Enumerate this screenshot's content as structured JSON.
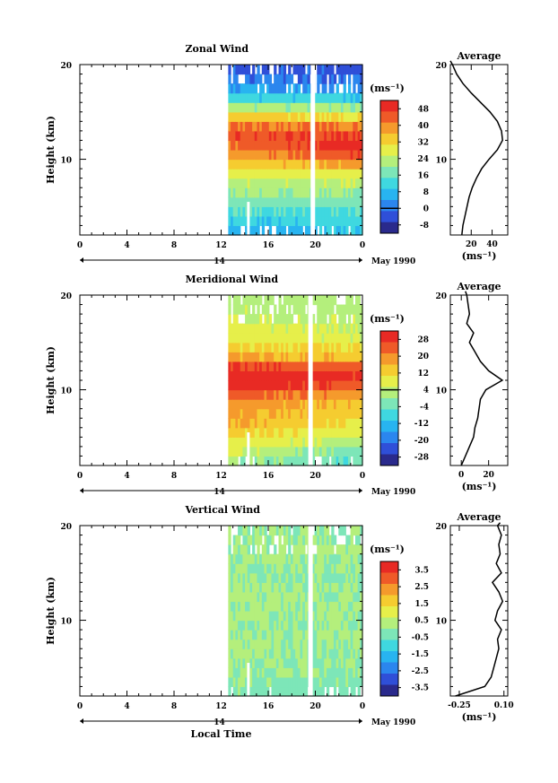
{
  "chart_data": [
    {
      "type": "heatmap",
      "title": "Zonal Wind",
      "ylabel": "Height (km)",
      "ylim": [
        2,
        20
      ],
      "y_ticks": [
        "20",
        "10"
      ],
      "x_ticks": [
        "0",
        "4",
        "8",
        "12",
        "16",
        "20",
        "0"
      ],
      "xlim": [
        0,
        24
      ],
      "data_start_hour": 12.6,
      "gap_hours": [
        14.2,
        19.6
      ],
      "date_day_label": "14",
      "date_label": "May 1990",
      "colorbar": {
        "unit": "(ms⁻¹)",
        "labels": [
          "48",
          "40",
          "32",
          "24",
          "16",
          "8",
          "0",
          "-8"
        ],
        "zero_line_index": 6
      },
      "field": {
        "levels_km": [
          2,
          3,
          4,
          5,
          6,
          7,
          8,
          9,
          10,
          11,
          12,
          13,
          14,
          15,
          16,
          17,
          18,
          19,
          20
        ],
        "early_ms": [
          6,
          10,
          14,
          17,
          21,
          24,
          27,
          32,
          38,
          42,
          45,
          42,
          33,
          22,
          11,
          4,
          0,
          -2,
          -4
        ],
        "late_ms": [
          10,
          12,
          14,
          17,
          20,
          24,
          29,
          38,
          46,
          50,
          47,
          40,
          30,
          20,
          10,
          3,
          -1,
          -3,
          -5
        ]
      },
      "profile": {
        "title": "Average",
        "x": [
          11,
          12,
          14,
          16,
          18,
          21,
          25,
          30,
          37,
          45,
          50,
          49,
          45,
          38,
          29,
          20,
          12,
          6,
          2,
          0
        ],
        "y": [
          2,
          3,
          4,
          5,
          6,
          7,
          8,
          9,
          10,
          11,
          12,
          13,
          14,
          15,
          16,
          17,
          18,
          19,
          20,
          20.5
        ],
        "xlim": [
          0,
          55
        ],
        "x_ticks": [
          "20",
          "40"
        ],
        "y_ticks": [
          "20",
          "10"
        ],
        "xlabel": "(ms⁻¹)"
      }
    },
    {
      "type": "heatmap",
      "title": "Meridional Wind",
      "ylabel": "Height (km)",
      "ylim": [
        2,
        20
      ],
      "y_ticks": [
        "20",
        "10"
      ],
      "x_ticks": [
        "0",
        "4",
        "8",
        "12",
        "16",
        "20",
        "0"
      ],
      "xlim": [
        0,
        24
      ],
      "data_start_hour": 12.6,
      "gap_hours": [
        14.2,
        19.4
      ],
      "date_day_label": "14",
      "date_label": "May 1990",
      "colorbar": {
        "unit": "(ms⁻¹)",
        "labels": [
          "28",
          "20",
          "12",
          "4",
          "-4",
          "-12",
          "-20",
          "-28"
        ],
        "zero_line_index": 3
      },
      "field": {
        "levels_km": [
          2,
          3,
          4,
          5,
          6,
          7,
          8,
          9,
          10,
          11,
          12,
          13,
          14,
          15,
          16,
          17,
          18,
          19,
          20
        ],
        "early_ms": [
          2,
          6,
          10,
          13,
          16,
          18,
          20,
          24,
          30,
          32,
          27,
          18,
          12,
          8,
          8,
          6,
          4,
          2,
          2
        ],
        "late_ms": [
          -6,
          -3,
          2,
          7,
          10,
          12,
          14,
          18,
          24,
          28,
          22,
          14,
          10,
          6,
          5,
          4,
          3,
          2,
          1
        ]
      },
      "profile": {
        "title": "Average",
        "x": [
          0,
          3,
          6,
          9,
          10,
          12,
          13,
          14,
          18,
          30,
          20,
          14,
          10,
          6,
          9,
          4,
          6,
          5,
          4,
          3
        ],
        "y": [
          2,
          3,
          4,
          5,
          6,
          7,
          8,
          9,
          10,
          11,
          12,
          13,
          14,
          15,
          16,
          17,
          18,
          19,
          20,
          20.5
        ],
        "xlim": [
          -8,
          34
        ],
        "x_ticks": [
          "0",
          "20"
        ],
        "y_ticks": [
          "20",
          "10"
        ],
        "xlabel": "(ms⁻¹)"
      }
    },
    {
      "type": "heatmap",
      "title": "Vertical Wind",
      "ylabel": "Height (km)",
      "ylim": [
        2,
        20
      ],
      "y_ticks": [
        "20",
        "10"
      ],
      "x_ticks": [
        "0",
        "4",
        "8",
        "12",
        "16",
        "20",
        "0"
      ],
      "xlim": [
        0,
        24
      ],
      "xlabel": "Local Time",
      "data_start_hour": 12.6,
      "gap_hours": [
        14.2,
        19.4
      ],
      "date_day_label": "14",
      "date_label": "May 1990",
      "colorbar": {
        "unit": "(ms⁻¹)",
        "labels": [
          "3.5",
          "2.5",
          "1.5",
          "0.5",
          "-0.5",
          "-1.5",
          "-2.5",
          "-3.5"
        ],
        "zero_line_index": -1
      },
      "field": {
        "levels_km": [
          2,
          3,
          4,
          5,
          6,
          7,
          8,
          9,
          10,
          11,
          12,
          13,
          14,
          15,
          16,
          17,
          18,
          19,
          20
        ],
        "early_ms": [
          -0.2,
          -0.1,
          0,
          0,
          0.1,
          0.1,
          0,
          0,
          0.1,
          0,
          0.2,
          0.1,
          0,
          0,
          0.1,
          0,
          0.1,
          0,
          0
        ],
        "late_ms": [
          -0.3,
          -0.2,
          -0.1,
          0,
          0,
          0.1,
          0.1,
          0,
          0,
          0.1,
          0.1,
          0,
          -0.1,
          0,
          0,
          0.1,
          0,
          0,
          0
        ]
      },
      "profile": {
        "title": "Average",
        "x": [
          -0.28,
          -0.05,
          0.0,
          0.02,
          0.04,
          0.06,
          0.05,
          0.08,
          0.03,
          0.05,
          0.09,
          0.06,
          0.01,
          0.08,
          0.04,
          0.07,
          0.06,
          0.08,
          0.05,
          0.07
        ],
        "y": [
          2,
          3,
          4,
          5,
          6,
          7,
          8,
          9,
          10,
          11,
          12,
          13,
          14,
          15,
          16,
          17,
          18,
          19,
          20,
          20.3
        ],
        "xlim": [
          -0.32,
          0.13
        ],
        "x_ticks": [
          "-0.25",
          "0.10"
        ],
        "x_tick_values": [
          -0.25,
          0.1
        ],
        "y_ticks": [
          "20",
          "10"
        ],
        "xlabel": "(ms⁻¹)"
      }
    }
  ]
}
